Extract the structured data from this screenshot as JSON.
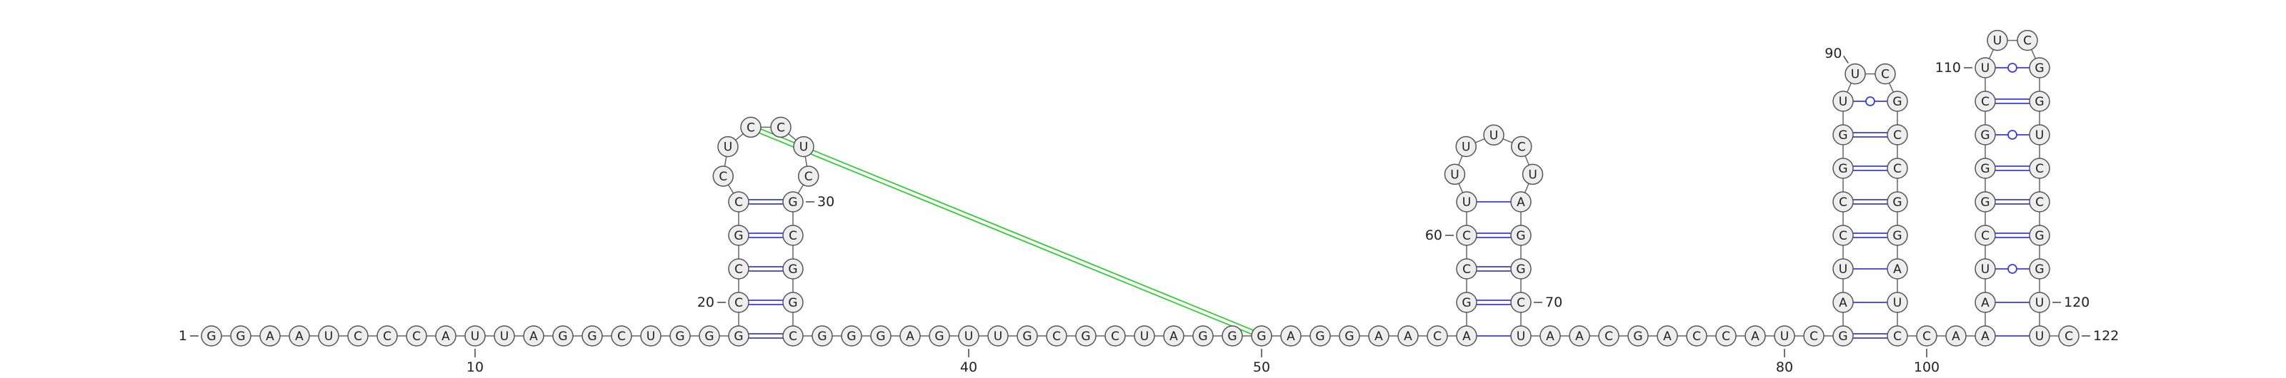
{
  "sequence": [
    "G",
    "G",
    "A",
    "A",
    "U",
    "C",
    "C",
    "C",
    "A",
    "U",
    "U",
    "A",
    "G",
    "G",
    "C",
    "U",
    "G",
    "G",
    "G",
    "C",
    "C",
    "G",
    "C",
    "C",
    "U",
    "C",
    "C",
    "U",
    "C",
    "G",
    "C",
    "G",
    "G",
    "C",
    "G",
    "G",
    "G",
    "A",
    "G",
    "U",
    "U",
    "G",
    "C",
    "G",
    "C",
    "U",
    "A",
    "G",
    "G",
    "G",
    "A",
    "G",
    "G",
    "A",
    "A",
    "C",
    "A",
    "G",
    "C",
    "C",
    "U",
    "U",
    "U",
    "U",
    "C",
    "U",
    "A",
    "G",
    "G",
    "C",
    "U",
    "A",
    "A",
    "C",
    "G",
    "A",
    "C",
    "C",
    "A",
    "U",
    "C",
    "G",
    "A",
    "U",
    "C",
    "C",
    "G",
    "G",
    "U",
    "U",
    "C",
    "G",
    "C",
    "C",
    "G",
    "G",
    "A",
    "U",
    "C",
    "C",
    "A",
    "A",
    "A",
    "U",
    "C",
    "G",
    "G",
    "G",
    "C",
    "U",
    "U",
    "C",
    "G",
    "G",
    "U",
    "C",
    "C",
    "G",
    "G",
    "U",
    "U",
    "C"
  ],
  "numbering": [
    1,
    10,
    20,
    30,
    40,
    50,
    60,
    70,
    80,
    90,
    100,
    110,
    120,
    122
  ],
  "pairs": [
    [
      19,
      34
    ],
    [
      20,
      33
    ],
    [
      21,
      32
    ],
    [
      22,
      31
    ],
    [
      23,
      30
    ],
    [
      57,
      71
    ],
    [
      58,
      70
    ],
    [
      59,
      69
    ],
    [
      60,
      68
    ],
    [
      61,
      67
    ],
    [
      82,
      99
    ],
    [
      83,
      98
    ],
    [
      84,
      97
    ],
    [
      85,
      96
    ],
    [
      86,
      95
    ],
    [
      87,
      94
    ],
    [
      88,
      93
    ],
    [
      89,
      92
    ],
    [
      102,
      121
    ],
    [
      103,
      120
    ],
    [
      104,
      119
    ],
    [
      105,
      118
    ],
    [
      106,
      117
    ],
    [
      107,
      116
    ],
    [
      108,
      115
    ],
    [
      109,
      114
    ],
    [
      110,
      113
    ]
  ],
  "pseudoknots": [
    [
      26,
      50
    ]
  ]
}
